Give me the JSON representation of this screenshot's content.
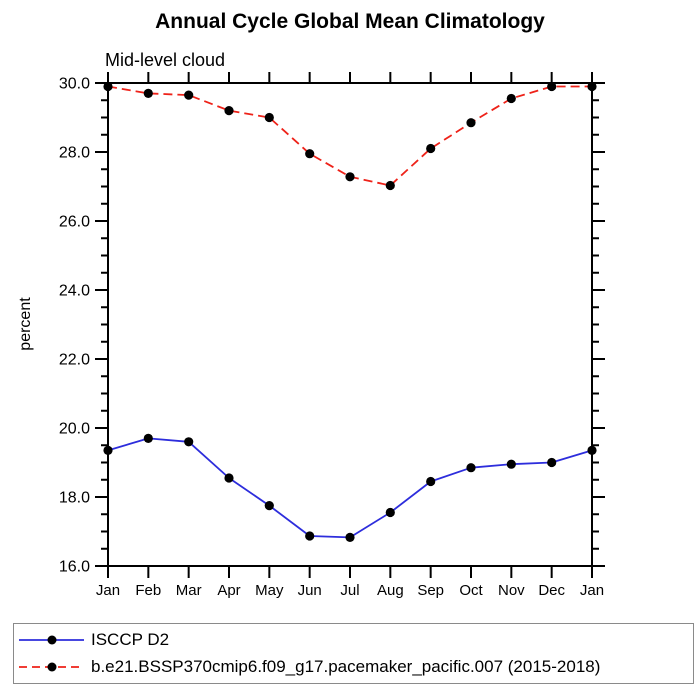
{
  "chart_data": {
    "type": "line",
    "title": "Annual Cycle Global Mean Climatology",
    "subtitle": "Mid-level cloud",
    "ylabel": "percent",
    "xlabel": "",
    "categories": [
      "Jan",
      "Feb",
      "Mar",
      "Apr",
      "May",
      "Jun",
      "Jul",
      "Aug",
      "Sep",
      "Oct",
      "Nov",
      "Dec",
      "Jan"
    ],
    "ylim": [
      16.0,
      30.0
    ],
    "ytick_major_interval": 2.0,
    "ytick_minor_interval": 0.5,
    "ytick_labels": [
      "16.0",
      "18.0",
      "20.0",
      "22.0",
      "24.0",
      "26.0",
      "28.0",
      "30.0"
    ],
    "grid": false,
    "legend_position": "bottom",
    "series": [
      {
        "name": "ISCCP D2",
        "color": "#2d2ddc",
        "line_style": "solid",
        "marker": "filled-circle",
        "marker_color": "#000000",
        "values": [
          19.35,
          19.7,
          19.6,
          18.55,
          17.75,
          16.87,
          16.83,
          17.55,
          18.45,
          18.85,
          18.95,
          19.0,
          19.35
        ]
      },
      {
        "name": "b.e21.BSSP370cmip6.f09_g17.pacemaker_pacific.007 (2015-2018)",
        "color": "#ee2219",
        "line_style": "dashed",
        "marker": "filled-circle",
        "marker_color": "#000000",
        "values": [
          29.9,
          29.7,
          29.65,
          29.2,
          29.0,
          27.95,
          27.28,
          27.03,
          28.1,
          28.85,
          29.55,
          29.9,
          29.9
        ]
      }
    ]
  },
  "colors": {
    "axis": "#000000",
    "legend_border": "#8a8a8a",
    "background": "#ffffff"
  }
}
